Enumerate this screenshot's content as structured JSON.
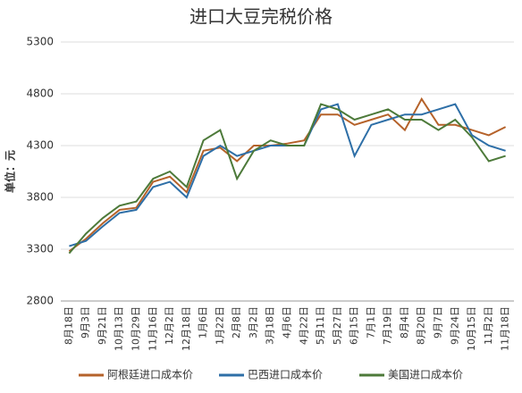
{
  "chart_data": {
    "type": "line",
    "title": "进口大豆完税价格",
    "y_label": "单位：元",
    "categories": [
      "8月18日",
      "9月3日",
      "9月21日",
      "10月13日",
      "10月29日",
      "11月16日",
      "12月2日",
      "12月18日",
      "1月6日",
      "1月22日",
      "2月8日",
      "3月2日",
      "3月18日",
      "4月6日",
      "4月22日",
      "5月11日",
      "5月27日",
      "6月15日",
      "7月1日",
      "7月19日",
      "8月4日",
      "8月20日",
      "9月7日",
      "9月24日",
      "10月15日",
      "11月2日",
      "11月18日"
    ],
    "series": [
      {
        "name": "阿根廷进口成本价",
        "color": "#b5622a",
        "values": [
          3280,
          3400,
          3550,
          3680,
          3700,
          3950,
          4000,
          3850,
          4250,
          4280,
          4150,
          4300,
          4300,
          4320,
          4350,
          4600,
          4600,
          4500,
          4550,
          4600,
          4450,
          4750,
          4500,
          4500,
          4450,
          4400,
          4480
        ]
      },
      {
        "name": "巴西进口成本价",
        "color": "#2e6fa7",
        "values": [
          3330,
          3380,
          3520,
          3650,
          3680,
          3900,
          3950,
          3800,
          4200,
          4300,
          4200,
          4250,
          4300,
          4300,
          4300,
          4650,
          4700,
          4200,
          4500,
          4550,
          4600,
          4600,
          4650,
          4700,
          4400,
          4300,
          4250
        ]
      },
      {
        "name": "美国进口成本价",
        "color": "#4d7a3a",
        "values": [
          3260,
          3450,
          3600,
          3720,
          3760,
          3980,
          4050,
          3900,
          4350,
          4450,
          3980,
          4250,
          4350,
          4300,
          4300,
          4700,
          4650,
          4550,
          4600,
          4650,
          4550,
          4550,
          4450,
          4550,
          4380,
          4150,
          4200
        ]
      }
    ],
    "ylim": [
      2800,
      5300
    ],
    "yticks": [
      2800,
      3300,
      3800,
      4300,
      4800,
      5300
    ],
    "grid": true
  }
}
